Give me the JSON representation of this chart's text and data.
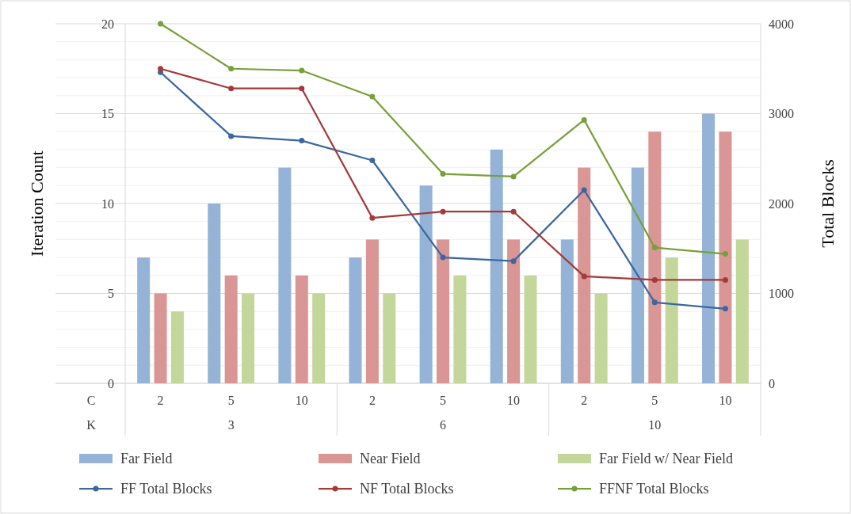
{
  "chart_data": {
    "type": "bar",
    "ylabel": "Iteration Count",
    "y2label": "Total Blocks",
    "categories": [
      "2",
      "5",
      "10",
      "2",
      "5",
      "10",
      "2",
      "5",
      "10"
    ],
    "annotations": [
      "C",
      "K",
      "3",
      "6",
      "10"
    ],
    "series": [
      {
        "name": "Far Field",
        "color": "#95b3d7",
        "values": [
          7,
          10,
          12,
          7,
          11,
          13,
          8,
          12,
          15
        ]
      },
      {
        "name": "Near Field",
        "color": "#da9694",
        "values": [
          5,
          6,
          6,
          8,
          8,
          8,
          12,
          14,
          14
        ]
      },
      {
        "name": "Far Field w/ Near Field",
        "color": "#c4d79b",
        "values": [
          4,
          5,
          5,
          5,
          6,
          6,
          5,
          7,
          8
        ]
      },
      {
        "name": "FF Total Blocks",
        "type": "line",
        "axis": "y2",
        "color": "#3b67a0",
        "values": [
          3460,
          2750,
          2700,
          2480,
          1400,
          1360,
          2150,
          900,
          830
        ]
      },
      {
        "name": "NF Total Blocks",
        "type": "line",
        "axis": "y2",
        "color": "#a23b39",
        "values": [
          3500,
          3280,
          3280,
          1840,
          1910,
          1910,
          1190,
          1150,
          1150
        ]
      },
      {
        "name": "FFNF Total Blocks",
        "type": "line",
        "axis": "y2",
        "color": "#77a03a",
        "values": [
          4000,
          3500,
          3480,
          3190,
          2330,
          2300,
          2930,
          1510,
          1440
        ]
      }
    ],
    "ylim": [
      0,
      20
    ],
    "yticks": [
      0,
      {
        "value": 1,
        "label": null
      },
      {
        "value": 2,
        "label": null
      },
      {
        "value": 3,
        "label": null
      },
      {
        "value": 4,
        "label": null
      },
      5,
      {
        "value": 6,
        "label": null
      },
      {
        "value": 7,
        "label": null
      },
      {
        "value": 8,
        "label": null
      },
      {
        "value": 9,
        "label": null
      },
      10,
      {
        "value": 11,
        "label": null
      },
      {
        "value": 12,
        "label": null
      },
      {
        "value": 13,
        "label": null
      },
      {
        "value": 14,
        "label": null
      },
      15,
      {
        "value": 16,
        "label": null
      },
      {
        "value": 17,
        "label": null
      },
      {
        "value": 18,
        "label": null
      },
      {
        "value": 19,
        "label": null
      },
      20
    ],
    "y2lim": [
      0,
      4000
    ],
    "y2ticks": [
      0,
      1000,
      2000,
      3000,
      4000
    ],
    "grid": "y",
    "legend": "bottom",
    "marker": "circle",
    "line_style": "solid"
  }
}
